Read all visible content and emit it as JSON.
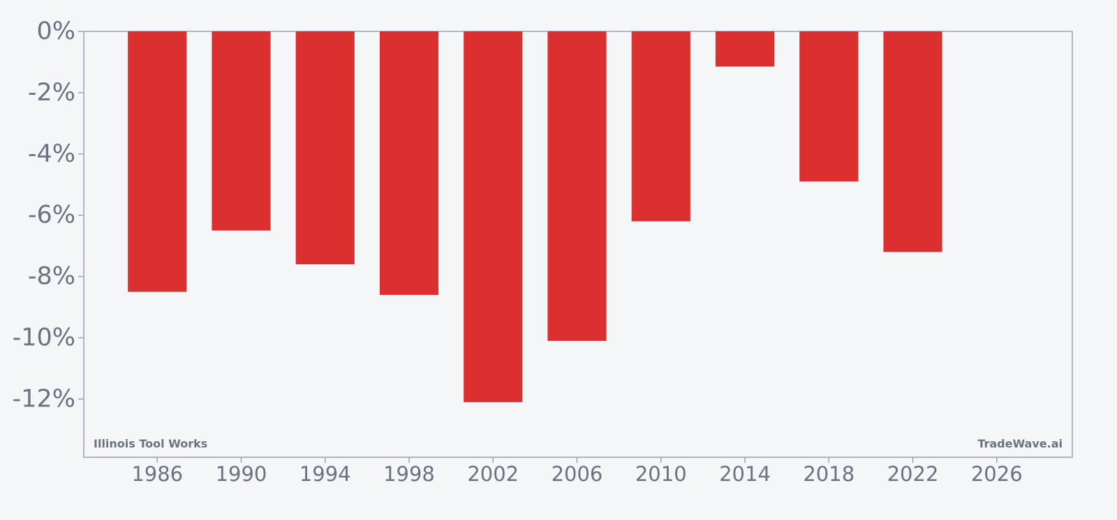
{
  "chart_data": {
    "type": "bar",
    "title": "",
    "xlabel": "",
    "ylabel": "",
    "x": [
      1986,
      1990,
      1994,
      1998,
      2002,
      2006,
      2010,
      2014,
      2018,
      2022
    ],
    "values": [
      -8.5,
      -6.5,
      -7.6,
      -8.6,
      -12.1,
      -10.1,
      -6.2,
      -1.15,
      -4.9,
      -7.2
    ],
    "ylim": [
      -13.9,
      0
    ],
    "xlim": [
      1982.5,
      2029.6
    ],
    "y_ticks": [
      0,
      -2,
      -4,
      -6,
      -8,
      -10,
      -12
    ],
    "y_tick_labels": [
      "0%",
      "-2%",
      "-4%",
      "-6%",
      "-8%",
      "-10%",
      "-12%"
    ],
    "x_ticks": [
      1986,
      1990,
      1994,
      1998,
      2002,
      2006,
      2010,
      2014,
      2018,
      2022,
      2026
    ],
    "x_tick_labels": [
      "1986",
      "1990",
      "1994",
      "1998",
      "2002",
      "2006",
      "2010",
      "2014",
      "2018",
      "2022",
      "2026"
    ],
    "bar_width_years": 2.8,
    "bar_color": "#dc3030",
    "axis_color": "#9ca3af",
    "text_color": "#6b7280",
    "grid": false,
    "annotations": {
      "company": "Illinois Tool Works",
      "brand": "TradeWave.ai"
    }
  }
}
